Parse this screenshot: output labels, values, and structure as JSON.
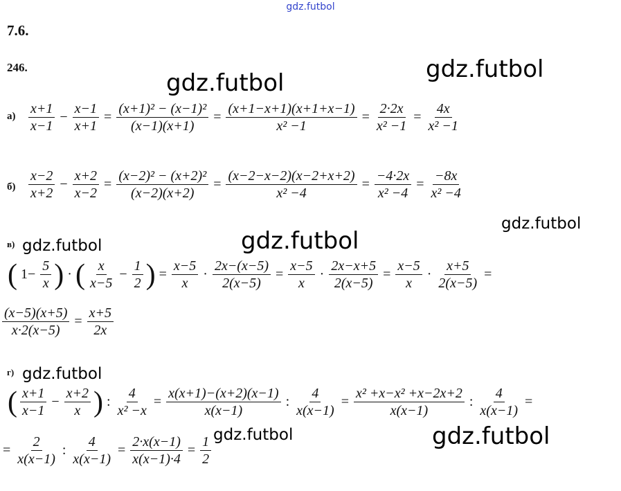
{
  "header": {
    "site": "gdz.futbol"
  },
  "section": "7.6.",
  "problem": "246.",
  "watermarks": [
    "gdz.futbol",
    "gdz.futbol",
    "gdz.futbol",
    "gdz.futbol",
    "gdz.futbol",
    "gdz.futbol",
    "gdz.futbol",
    "gdz.futbol"
  ],
  "parts": [
    {
      "label": "а)",
      "lines": [
        [
          [
            "x+1",
            "x−1"
          ],
          "−",
          [
            "x−1",
            "x+1"
          ],
          "=",
          [
            "(x+1)² − (x−1)²",
            "(x−1)(x+1)"
          ],
          "=",
          [
            "(x+1−x+1)(x+1+x−1)",
            "x² −1"
          ],
          "=",
          [
            "2·2x",
            "x² −1"
          ],
          "=",
          [
            "4x",
            "x² −1"
          ]
        ]
      ]
    },
    {
      "label": "б)",
      "lines": [
        [
          [
            "x−2",
            "x+2"
          ],
          "−",
          [
            "x+2",
            "x−2"
          ],
          "=",
          [
            "(x−2)² − (x+2)²",
            "(x−2)(x+2)"
          ],
          "=",
          [
            "(x−2−x−2)(x−2+x+2)",
            "x² −4"
          ],
          "=",
          [
            "−4·2x",
            "x² −4"
          ],
          "=",
          [
            "−8x",
            "x² −4"
          ]
        ]
      ]
    },
    {
      "label": "в)",
      "lines": [
        [
          "(",
          "1−",
          [
            "5",
            "x"
          ],
          ")",
          "·",
          "(",
          [
            "x",
            "x−5"
          ],
          "−",
          [
            "1",
            "2"
          ],
          ")",
          "=",
          [
            "x−5",
            "x"
          ],
          "·",
          [
            "2x−(x−5)",
            "2(x−5)"
          ],
          "=",
          [
            "x−5",
            "x"
          ],
          "·",
          [
            "2x−x+5",
            "2(x−5)"
          ],
          "=",
          [
            "x−5",
            "x"
          ],
          "·",
          [
            "x+5",
            "2(x−5)"
          ],
          "="
        ],
        [
          [
            "(x−5)(x+5)",
            "x·2(x−5)"
          ],
          "=",
          [
            "x+5",
            "2x"
          ]
        ]
      ]
    },
    {
      "label": "г)",
      "lines": [
        [
          "(",
          [
            "x+1",
            "x−1"
          ],
          "−",
          [
            "x+2",
            "x"
          ],
          ")",
          ":",
          [
            "4",
            "x² −x"
          ],
          "=",
          [
            "x(x+1)−(x+2)(x−1)",
            "x(x−1)"
          ],
          ":",
          [
            "4",
            "x(x−1)"
          ],
          "=",
          [
            "x² +x−x² +x−2x+2",
            "x(x−1)"
          ],
          ":",
          [
            "4",
            "x(x−1)"
          ],
          "="
        ],
        [
          "=",
          [
            "2",
            "x(x−1)"
          ],
          ":",
          [
            "4",
            "x(x−1)"
          ],
          "=",
          [
            "2·x(x−1)",
            "x(x−1)·4"
          ],
          "=",
          [
            "1",
            "2"
          ]
        ]
      ]
    }
  ]
}
